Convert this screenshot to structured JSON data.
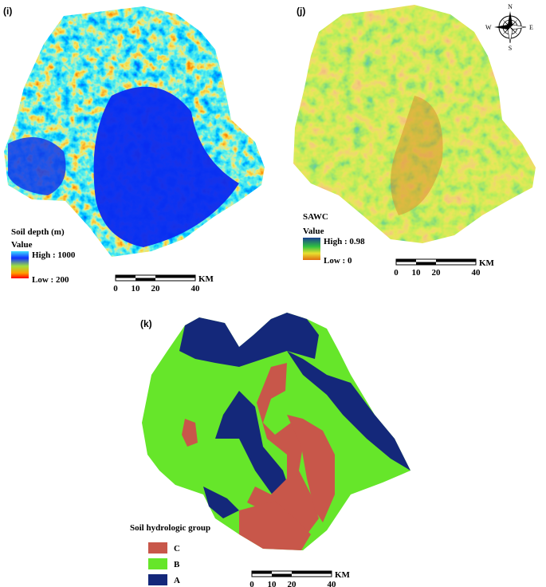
{
  "panels": [
    {
      "label": "(i)",
      "legend": {
        "title": "Soil depth (m)",
        "subtitle": "Value",
        "high": "High : 1000",
        "low": "Low : 200"
      },
      "scale": {
        "unit": "KM",
        "ticks": [
          "0",
          "10",
          "20",
          "40"
        ]
      }
    },
    {
      "label": "(j)",
      "legend": {
        "title": "SAWC",
        "subtitle": "Value",
        "high": "High : 0.98",
        "low": "Low : 0"
      },
      "scale": {
        "unit": "KM",
        "ticks": [
          "0",
          "10",
          "20",
          "40"
        ]
      }
    },
    {
      "label": "(k)",
      "legend": {
        "title": "Soil hydrologic group",
        "classes": [
          "C",
          "B",
          "A"
        ]
      },
      "scale": {
        "unit": "KM",
        "ticks": [
          "0",
          "10",
          "20",
          "40"
        ]
      }
    }
  ],
  "compass": {
    "n": "N",
    "e": "E",
    "s": "S",
    "w": "W"
  }
}
